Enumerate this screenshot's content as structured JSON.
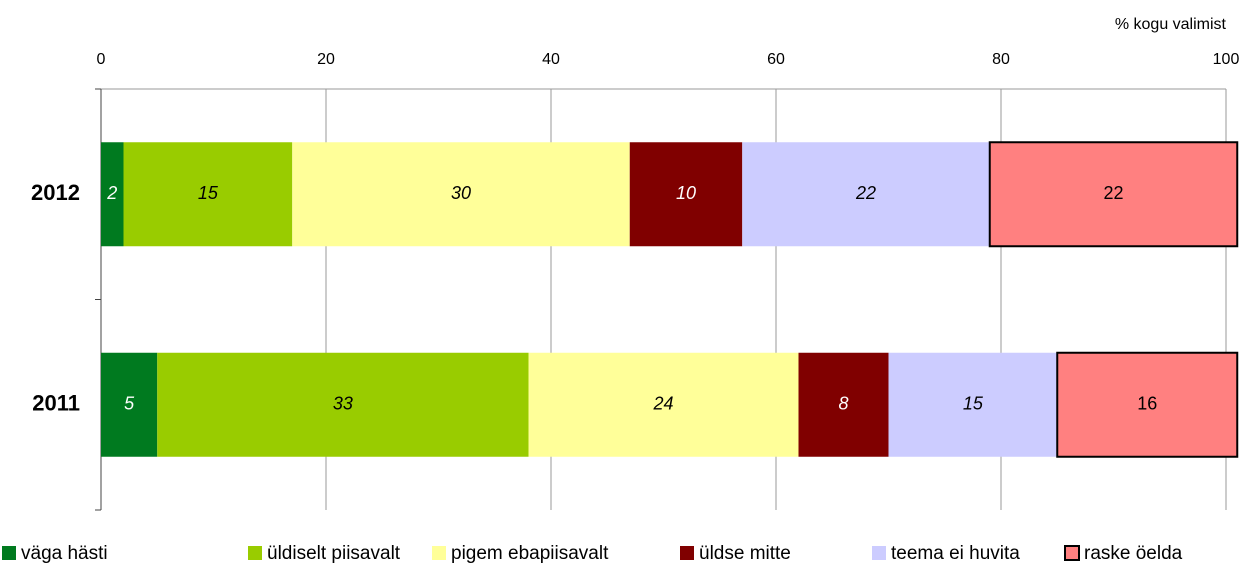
{
  "chart_data": {
    "type": "bar",
    "orientation": "horizontal",
    "stacked": true,
    "x_label": "% kogu valimist",
    "categories": [
      "2012",
      "2011"
    ],
    "series": [
      {
        "name": "väga hästi",
        "color": "#007a1f",
        "values": [
          2,
          5
        ]
      },
      {
        "name": "üldiselt piisavalt",
        "color": "#99cc00",
        "values": [
          15,
          33
        ]
      },
      {
        "name": "pigem ebapiisavalt",
        "color": "#ffff99",
        "values": [
          30,
          24
        ]
      },
      {
        "name": "üldse mitte",
        "color": "#800000",
        "values": [
          10,
          8
        ]
      },
      {
        "name": "teema ei huvita",
        "color": "#ccccff",
        "values": [
          22,
          15
        ]
      },
      {
        "name": "raske öelda",
        "color": "#ff8080",
        "edgecolor": "#000000",
        "values": [
          22,
          16
        ]
      }
    ],
    "xlim": [
      0,
      100
    ],
    "xticks": [
      0,
      20,
      40,
      60,
      80,
      100
    ],
    "grid": true,
    "legend": "bottom"
  }
}
